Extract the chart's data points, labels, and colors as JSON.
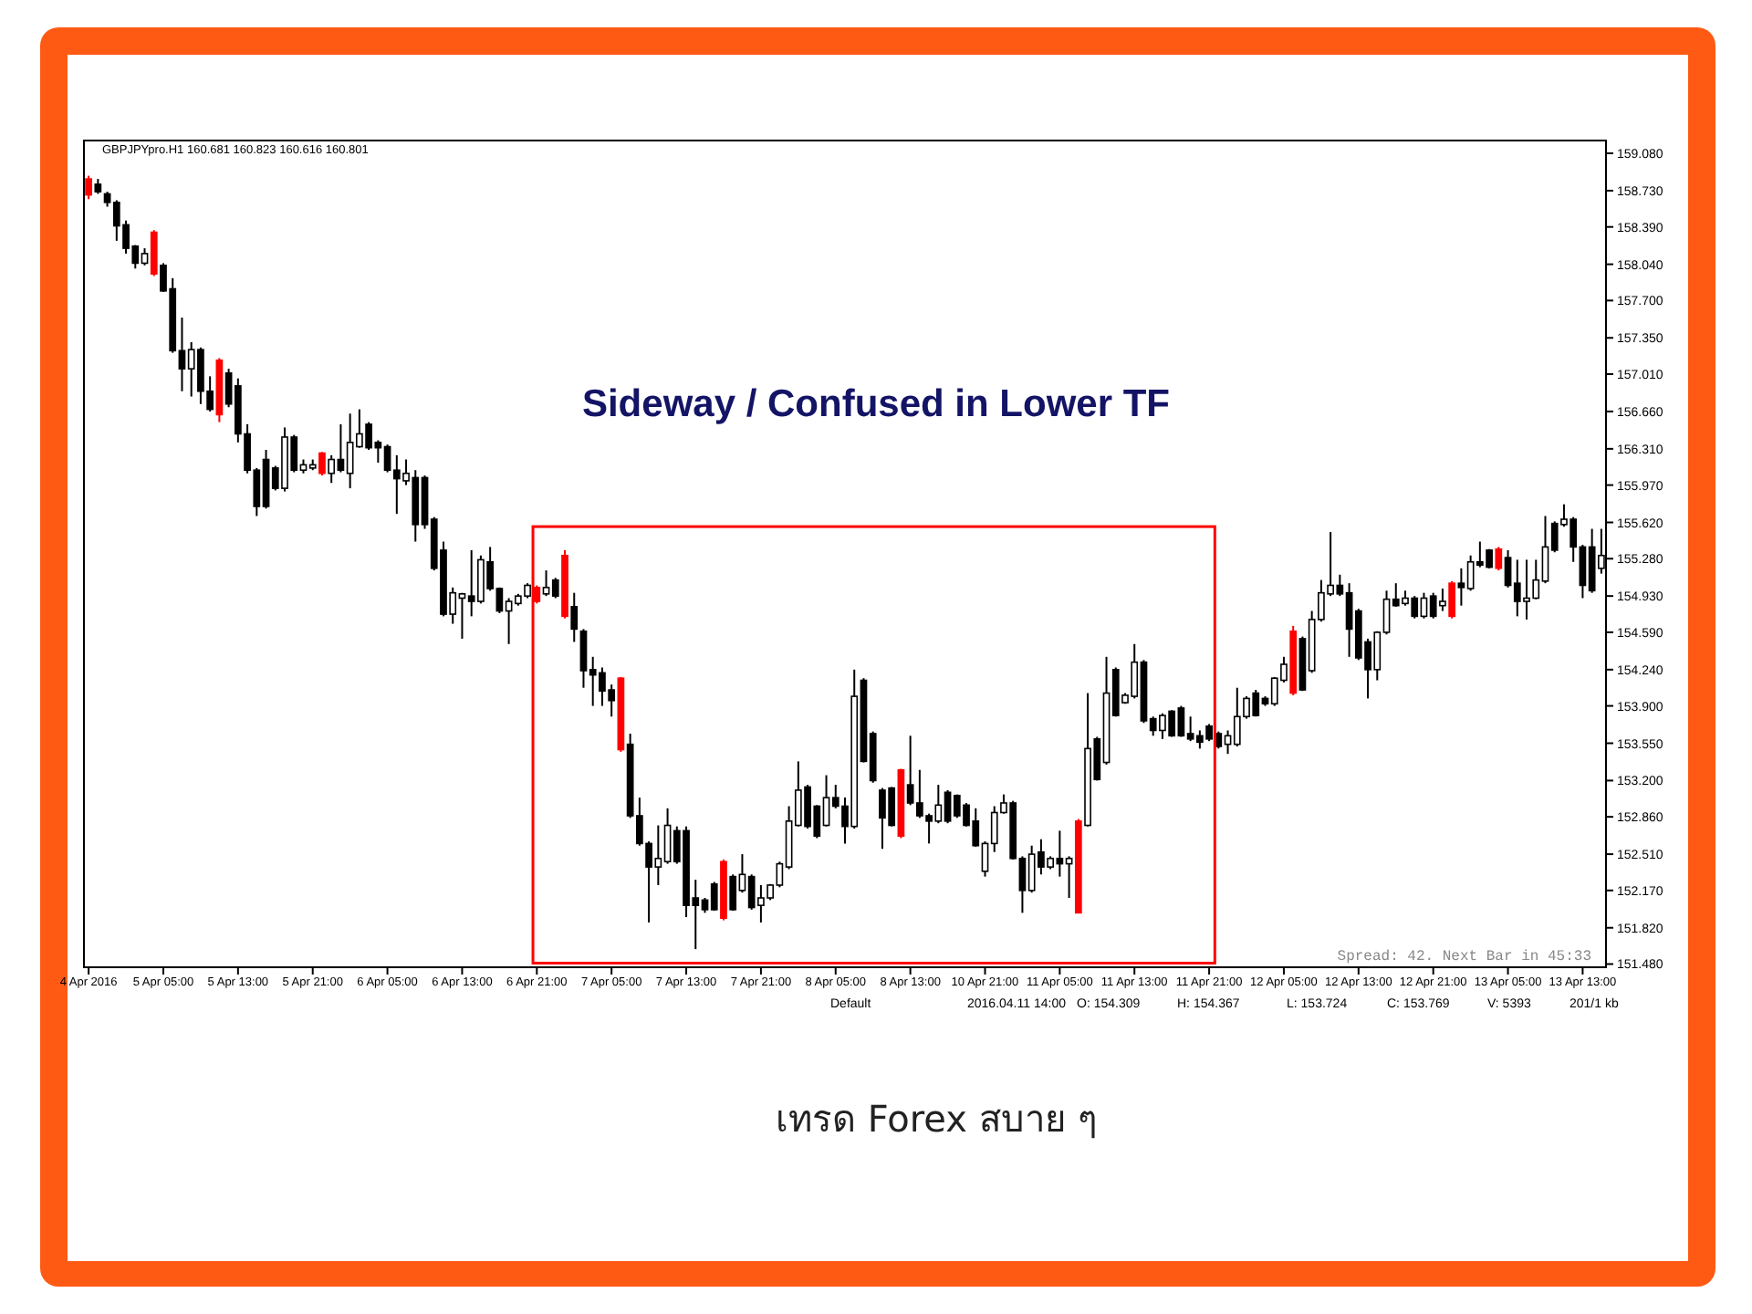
{
  "chart_data": {
    "type": "candlestick",
    "title": "Sideway / Confused in Lower TF",
    "categories": [
      "4 Apr 2016",
      null,
      null,
      null,
      null,
      null,
      null,
      null,
      "5 Apr 05:00",
      null,
      null,
      null,
      null,
      null,
      null,
      null,
      "5 Apr 13:00",
      null,
      null,
      null,
      null,
      null,
      null,
      null,
      "5 Apr 21:00",
      null,
      null,
      null,
      null,
      null,
      null,
      null,
      "6 Apr 05:00",
      null,
      null,
      null,
      null,
      null,
      null,
      null,
      "6 Apr 13:00",
      null,
      null,
      null,
      null,
      null,
      null,
      null,
      "6 Apr 21:00",
      null,
      null,
      null,
      null,
      null,
      null,
      null,
      "7 Apr 05:00",
      null,
      null,
      null,
      null,
      null,
      null,
      null,
      "7 Apr 13:00",
      null,
      null,
      null,
      null,
      null,
      null,
      null,
      "7 Apr 21:00",
      null,
      null,
      null,
      null,
      null,
      null,
      null,
      "8 Apr 05:00",
      null,
      null,
      null,
      null,
      null,
      null,
      null,
      "8 Apr 13:00",
      null,
      null,
      null,
      null,
      null,
      null,
      null,
      "10 Apr 21:00",
      null,
      null,
      null,
      null,
      null,
      null,
      null,
      "11 Apr 05:00",
      null,
      null,
      null,
      null,
      null,
      null,
      null,
      "11 Apr 13:00",
      null,
      null,
      null,
      null,
      null,
      null,
      null,
      "11 Apr 21:00",
      null,
      null,
      null,
      null,
      null,
      null,
      null,
      "12 Apr 05:00",
      null,
      null,
      null,
      null,
      null,
      null,
      null,
      "12 Apr 13:00",
      null,
      null,
      null,
      null,
      null,
      null,
      null,
      "12 Apr 21:00",
      null,
      null,
      null,
      null,
      null,
      null,
      null,
      "13 Apr 05:00",
      null,
      null,
      null,
      null,
      null,
      null,
      null,
      "13 Apr 13:00",
      null,
      null
    ],
    "ohlc": [
      [
        158.84,
        158.87,
        158.65,
        158.69
      ],
      [
        158.79,
        158.84,
        158.7,
        158.72
      ],
      [
        158.7,
        158.72,
        158.58,
        158.62
      ],
      [
        158.62,
        158.64,
        158.26,
        158.4
      ],
      [
        158.41,
        158.45,
        158.14,
        158.19
      ],
      [
        158.21,
        158.22,
        158.0,
        158.05
      ],
      [
        158.05,
        158.19,
        158.03,
        158.14
      ],
      [
        158.34,
        158.36,
        157.93,
        157.95
      ],
      [
        158.03,
        158.05,
        157.78,
        157.79
      ],
      [
        157.81,
        157.91,
        157.21,
        157.23
      ],
      [
        157.23,
        157.54,
        156.85,
        157.06
      ],
      [
        157.06,
        157.31,
        156.8,
        157.24
      ],
      [
        157.24,
        157.26,
        156.73,
        156.85
      ],
      [
        156.85,
        156.99,
        156.66,
        156.68
      ],
      [
        157.14,
        157.16,
        156.56,
        156.63
      ],
      [
        157.02,
        157.06,
        156.7,
        156.73
      ],
      [
        156.9,
        156.97,
        156.37,
        156.45
      ],
      [
        156.45,
        156.54,
        156.08,
        156.11
      ],
      [
        156.11,
        156.13,
        155.68,
        155.77
      ],
      [
        156.21,
        156.3,
        155.75,
        155.77
      ],
      [
        156.13,
        156.15,
        155.92,
        155.94
      ],
      [
        155.94,
        156.51,
        155.91,
        156.42
      ],
      [
        156.42,
        156.44,
        156.09,
        156.11
      ],
      [
        156.11,
        156.21,
        156.08,
        156.16
      ],
      [
        156.13,
        156.21,
        156.11,
        156.16
      ],
      [
        156.27,
        156.28,
        156.06,
        156.08
      ],
      [
        156.08,
        156.25,
        155.99,
        156.21
      ],
      [
        156.21,
        156.54,
        156.09,
        156.11
      ],
      [
        156.08,
        156.64,
        155.94,
        156.37
      ],
      [
        156.33,
        156.68,
        156.32,
        156.45
      ],
      [
        156.54,
        156.56,
        156.3,
        156.32
      ],
      [
        156.37,
        156.39,
        156.18,
        156.32
      ],
      [
        156.33,
        156.35,
        156.09,
        156.11
      ],
      [
        156.11,
        156.25,
        155.7,
        156.03
      ],
      [
        156.01,
        156.21,
        155.97,
        156.08
      ],
      [
        156.04,
        156.11,
        155.44,
        155.6
      ],
      [
        156.04,
        156.06,
        155.56,
        155.6
      ],
      [
        155.65,
        155.67,
        155.17,
        155.19
      ],
      [
        155.36,
        155.44,
        154.74,
        154.76
      ],
      [
        154.76,
        155.01,
        154.67,
        154.96
      ],
      [
        154.91,
        154.96,
        154.53,
        154.95
      ],
      [
        154.93,
        155.36,
        154.74,
        154.88
      ],
      [
        154.88,
        155.31,
        154.86,
        155.27
      ],
      [
        155.25,
        155.39,
        154.98,
        155.0
      ],
      [
        155.0,
        155.01,
        154.77,
        154.79
      ],
      [
        154.79,
        154.91,
        154.48,
        154.88
      ],
      [
        154.86,
        154.95,
        154.84,
        154.93
      ],
      [
        154.93,
        155.05,
        154.91,
        155.03
      ],
      [
        155.01,
        155.03,
        154.86,
        154.88
      ],
      [
        154.95,
        155.17,
        154.93,
        155.01
      ],
      [
        155.08,
        155.1,
        154.91,
        154.93
      ],
      [
        155.31,
        155.36,
        154.72,
        154.74
      ],
      [
        154.83,
        154.96,
        154.5,
        154.62
      ],
      [
        154.6,
        154.62,
        154.07,
        154.23
      ],
      [
        154.24,
        154.36,
        153.9,
        154.19
      ],
      [
        154.21,
        154.26,
        153.9,
        154.04
      ],
      [
        154.05,
        154.1,
        153.8,
        153.95
      ],
      [
        154.16,
        154.17,
        153.47,
        153.49
      ],
      [
        153.54,
        153.64,
        152.85,
        152.87
      ],
      [
        152.87,
        153.04,
        152.59,
        152.61
      ],
      [
        152.61,
        152.63,
        151.87,
        152.39
      ],
      [
        152.39,
        152.78,
        152.22,
        152.47
      ],
      [
        152.44,
        152.94,
        152.42,
        152.78
      ],
      [
        152.73,
        152.77,
        152.42,
        152.44
      ],
      [
        152.73,
        152.77,
        151.92,
        152.03
      ],
      [
        152.1,
        152.27,
        151.62,
        152.03
      ],
      [
        152.08,
        152.1,
        151.96,
        151.99
      ],
      [
        152.23,
        152.25,
        151.98,
        151.99
      ],
      [
        152.44,
        152.46,
        151.89,
        151.91
      ],
      [
        152.3,
        152.32,
        151.98,
        151.99
      ],
      [
        152.17,
        152.51,
        152.15,
        152.32
      ],
      [
        152.3,
        152.32,
        151.99,
        152.01
      ],
      [
        152.03,
        152.22,
        151.87,
        152.1
      ],
      [
        152.1,
        152.23,
        152.08,
        152.22
      ],
      [
        152.22,
        152.44,
        152.2,
        152.42
      ],
      [
        152.39,
        152.96,
        152.37,
        152.82
      ],
      [
        152.78,
        153.38,
        152.77,
        153.11
      ],
      [
        153.14,
        153.16,
        152.75,
        152.77
      ],
      [
        152.96,
        152.97,
        152.66,
        152.68
      ],
      [
        152.78,
        153.25,
        152.77,
        153.04
      ],
      [
        153.04,
        153.16,
        152.94,
        152.96
      ],
      [
        152.96,
        153.04,
        152.61,
        152.77
      ],
      [
        152.77,
        154.24,
        152.75,
        153.99
      ],
      [
        154.14,
        154.16,
        153.37,
        153.38
      ],
      [
        153.64,
        153.66,
        153.18,
        153.2
      ],
      [
        153.11,
        153.13,
        152.56,
        152.85
      ],
      [
        153.13,
        153.14,
        152.77,
        152.78
      ],
      [
        153.3,
        153.31,
        152.66,
        152.68
      ],
      [
        153.16,
        153.62,
        152.97,
        152.99
      ],
      [
        152.99,
        153.3,
        152.85,
        152.87
      ],
      [
        152.87,
        152.89,
        152.61,
        152.82
      ],
      [
        152.82,
        153.16,
        152.8,
        152.97
      ],
      [
        153.09,
        153.11,
        152.8,
        152.82
      ],
      [
        153.06,
        153.07,
        152.85,
        152.87
      ],
      [
        152.97,
        152.99,
        152.77,
        152.78
      ],
      [
        152.82,
        152.94,
        152.58,
        152.59
      ],
      [
        152.35,
        152.63,
        152.3,
        152.61
      ],
      [
        152.61,
        152.96,
        152.53,
        152.9
      ],
      [
        152.9,
        153.07,
        152.89,
        152.99
      ],
      [
        152.99,
        153.01,
        152.46,
        152.47
      ],
      [
        152.47,
        152.49,
        151.96,
        152.17
      ],
      [
        152.17,
        152.59,
        152.15,
        152.51
      ],
      [
        152.53,
        152.65,
        152.32,
        152.39
      ],
      [
        152.39,
        152.49,
        152.37,
        152.47
      ],
      [
        152.47,
        152.73,
        152.3,
        152.42
      ],
      [
        152.42,
        152.49,
        152.1,
        152.47
      ],
      [
        152.82,
        152.84,
        151.96,
        151.96
      ],
      [
        152.78,
        154.02,
        152.77,
        153.5
      ],
      [
        153.59,
        153.61,
        153.2,
        153.21
      ],
      [
        153.37,
        154.36,
        153.35,
        154.02
      ],
      [
        154.24,
        154.26,
        153.8,
        153.81
      ],
      [
        153.93,
        154.02,
        153.92,
        154.0
      ],
      [
        153.99,
        154.48,
        153.97,
        154.31
      ],
      [
        154.31,
        154.33,
        153.74,
        153.76
      ],
      [
        153.78,
        153.8,
        153.62,
        153.67
      ],
      [
        153.67,
        153.83,
        153.59,
        153.81
      ],
      [
        153.85,
        153.86,
        153.61,
        153.62
      ],
      [
        153.88,
        153.9,
        153.61,
        153.62
      ],
      [
        153.64,
        153.8,
        153.57,
        153.59
      ],
      [
        153.62,
        153.67,
        153.5,
        153.56
      ],
      [
        153.71,
        153.73,
        153.57,
        153.59
      ],
      [
        153.64,
        153.66,
        153.5,
        153.52
      ],
      [
        153.54,
        153.67,
        153.45,
        153.62
      ],
      [
        153.54,
        154.07,
        153.52,
        153.8
      ],
      [
        153.8,
        153.99,
        153.78,
        153.97
      ],
      [
        154.02,
        154.05,
        153.8,
        153.81
      ],
      [
        153.97,
        153.99,
        153.9,
        153.92
      ],
      [
        153.92,
        154.17,
        153.9,
        154.16
      ],
      [
        154.14,
        154.36,
        154.12,
        154.29
      ],
      [
        154.6,
        154.65,
        154.0,
        154.02
      ],
      [
        154.53,
        154.55,
        154.04,
        154.05
      ],
      [
        154.23,
        154.79,
        154.21,
        154.71
      ],
      [
        154.71,
        155.08,
        154.69,
        154.96
      ],
      [
        154.95,
        155.53,
        154.93,
        155.03
      ],
      [
        155.03,
        155.13,
        154.93,
        154.95
      ],
      [
        154.96,
        155.05,
        154.36,
        154.62
      ],
      [
        154.79,
        154.81,
        154.33,
        154.35
      ],
      [
        154.5,
        154.53,
        153.97,
        154.24
      ],
      [
        154.24,
        154.6,
        154.14,
        154.59
      ],
      [
        154.59,
        154.98,
        154.57,
        154.9
      ],
      [
        154.9,
        155.05,
        154.83,
        154.84
      ],
      [
        154.86,
        154.98,
        154.84,
        154.91
      ],
      [
        154.91,
        154.93,
        154.72,
        154.74
      ],
      [
        154.74,
        154.96,
        154.72,
        154.91
      ],
      [
        154.93,
        154.96,
        154.72,
        154.74
      ],
      [
        154.84,
        155.0,
        154.79,
        154.88
      ],
      [
        155.05,
        155.07,
        154.72,
        154.74
      ],
      [
        155.05,
        155.19,
        154.84,
        155.01
      ],
      [
        155.0,
        155.31,
        154.98,
        155.25
      ],
      [
        155.25,
        155.44,
        155.2,
        155.22
      ],
      [
        155.36,
        155.37,
        155.19,
        155.2
      ],
      [
        155.37,
        155.39,
        155.17,
        155.19
      ],
      [
        155.29,
        155.36,
        155.01,
        155.03
      ],
      [
        155.05,
        155.27,
        154.74,
        154.88
      ],
      [
        154.88,
        155.27,
        154.71,
        154.91
      ],
      [
        154.91,
        155.27,
        154.9,
        155.08
      ],
      [
        155.07,
        155.68,
        155.05,
        155.39
      ],
      [
        155.61,
        155.63,
        155.34,
        155.36
      ],
      [
        155.6,
        155.79,
        155.58,
        155.65
      ],
      [
        155.65,
        155.67,
        155.25,
        155.39
      ],
      [
        155.39,
        155.41,
        154.91,
        155.03
      ],
      [
        155.39,
        155.56,
        154.96,
        154.98
      ],
      [
        155.19,
        155.56,
        155.14,
        155.31
      ]
    ],
    "colors": [
      "#ff0000",
      "#000000",
      "#000000",
      "#000000",
      "#000000",
      "#000000",
      "#ffffff",
      "#ff0000",
      "#000000",
      "#000000",
      "#000000",
      "#ffffff",
      "#000000",
      "#000000",
      "#ff0000",
      "#000000",
      "#000000",
      "#000000",
      "#000000",
      "#000000",
      "#000000",
      "#ffffff",
      "#000000",
      "#ffffff",
      "#ffffff",
      "#ff0000",
      "#ffffff",
      "#000000",
      "#ffffff",
      "#ffffff",
      "#000000",
      "#000000",
      "#000000",
      "#000000",
      "#ffffff",
      "#000000",
      "#000000",
      "#000000",
      "#000000",
      "#ffffff",
      "#ffffff",
      "#000000",
      "#ffffff",
      "#000000",
      "#000000",
      "#ffffff",
      "#ffffff",
      "#ffffff",
      "#ff0000",
      "#ffffff",
      "#000000",
      "#ff0000",
      "#000000",
      "#000000",
      "#000000",
      "#000000",
      "#000000",
      "#ff0000",
      "#000000",
      "#000000",
      "#000000",
      "#ffffff",
      "#ffffff",
      "#000000",
      "#000000",
      "#000000",
      "#000000",
      "#000000",
      "#ff0000",
      "#000000",
      "#ffffff",
      "#000000",
      "#ffffff",
      "#ffffff",
      "#ffffff",
      "#ffffff",
      "#ffffff",
      "#000000",
      "#000000",
      "#ffffff",
      "#000000",
      "#000000",
      "#ffffff",
      "#000000",
      "#000000",
      "#000000",
      "#000000",
      "#ff0000",
      "#000000",
      "#000000",
      "#000000",
      "#ffffff",
      "#000000",
      "#000000",
      "#000000",
      "#000000",
      "#ffffff",
      "#ffffff",
      "#ffffff",
      "#000000",
      "#000000",
      "#ffffff",
      "#000000",
      "#ffffff",
      "#000000",
      "#ffffff",
      "#ff0000",
      "#ffffff",
      "#000000",
      "#ffffff",
      "#000000",
      "#ffffff",
      "#ffffff",
      "#000000",
      "#000000",
      "#ffffff",
      "#000000",
      "#000000",
      "#000000",
      "#000000",
      "#000000",
      "#000000",
      "#ffffff",
      "#ffffff",
      "#ffffff",
      "#000000",
      "#000000",
      "#ffffff",
      "#ffffff",
      "#ff0000",
      "#000000",
      "#ffffff",
      "#ffffff",
      "#ffffff",
      "#000000",
      "#000000",
      "#000000",
      "#000000",
      "#ffffff",
      "#ffffff",
      "#000000",
      "#ffffff",
      "#000000",
      "#ffffff",
      "#000000",
      "#ffffff",
      "#ff0000",
      "#000000",
      "#ffffff",
      "#000000",
      "#000000",
      "#ff0000",
      "#000000",
      "#000000",
      "#ffffff",
      "#ffffff",
      "#ffffff",
      "#000000",
      "#ffffff",
      "#000000",
      "#000000",
      "#000000",
      "#ffffff"
    ],
    "ylim": [
      151.45,
      159.2
    ],
    "yticks": [
      {
        "value": 159.08,
        "label": "159.080"
      },
      {
        "value": 158.73,
        "label": "158.730"
      },
      {
        "value": 158.39,
        "label": "158.390"
      },
      {
        "value": 158.04,
        "label": "158.040"
      },
      {
        "value": 157.7,
        "label": "157.700"
      },
      {
        "value": 157.35,
        "label": "157.350"
      },
      {
        "value": 157.01,
        "label": "157.010"
      },
      {
        "value": 156.66,
        "label": "156.660"
      },
      {
        "value": 156.31,
        "label": "156.310"
      },
      {
        "value": 155.97,
        "label": "155.970"
      },
      {
        "value": 155.62,
        "label": "155.620"
      },
      {
        "value": 155.28,
        "label": "155.280"
      },
      {
        "value": 154.93,
        "label": "154.930"
      },
      {
        "value": 154.59,
        "label": "154.590"
      },
      {
        "value": 154.24,
        "label": "154.240"
      },
      {
        "value": 153.9,
        "label": "153.900"
      },
      {
        "value": 153.55,
        "label": "153.550"
      },
      {
        "value": 153.2,
        "label": "153.200"
      },
      {
        "value": 152.86,
        "label": "152.860"
      },
      {
        "value": 152.51,
        "label": "152.510"
      },
      {
        "value": 152.17,
        "label": "152.170"
      },
      {
        "value": 151.82,
        "label": "151.820"
      },
      {
        "value": 151.48,
        "label": "151.480"
      }
    ],
    "annotations": [
      "GBPJPYpro.H1  160.681 160.823 160.616 160.801",
      "Spread: 42.  Next Bar in 45:33",
      "Default",
      "2016.04.11 14:00",
      "O: 154.309",
      "H: 154.367",
      "L: 153.724",
      "C: 153.769",
      "V: 5393",
      "201/1 kb",
      "เทรด Forex สบาย ๆ"
    ]
  }
}
